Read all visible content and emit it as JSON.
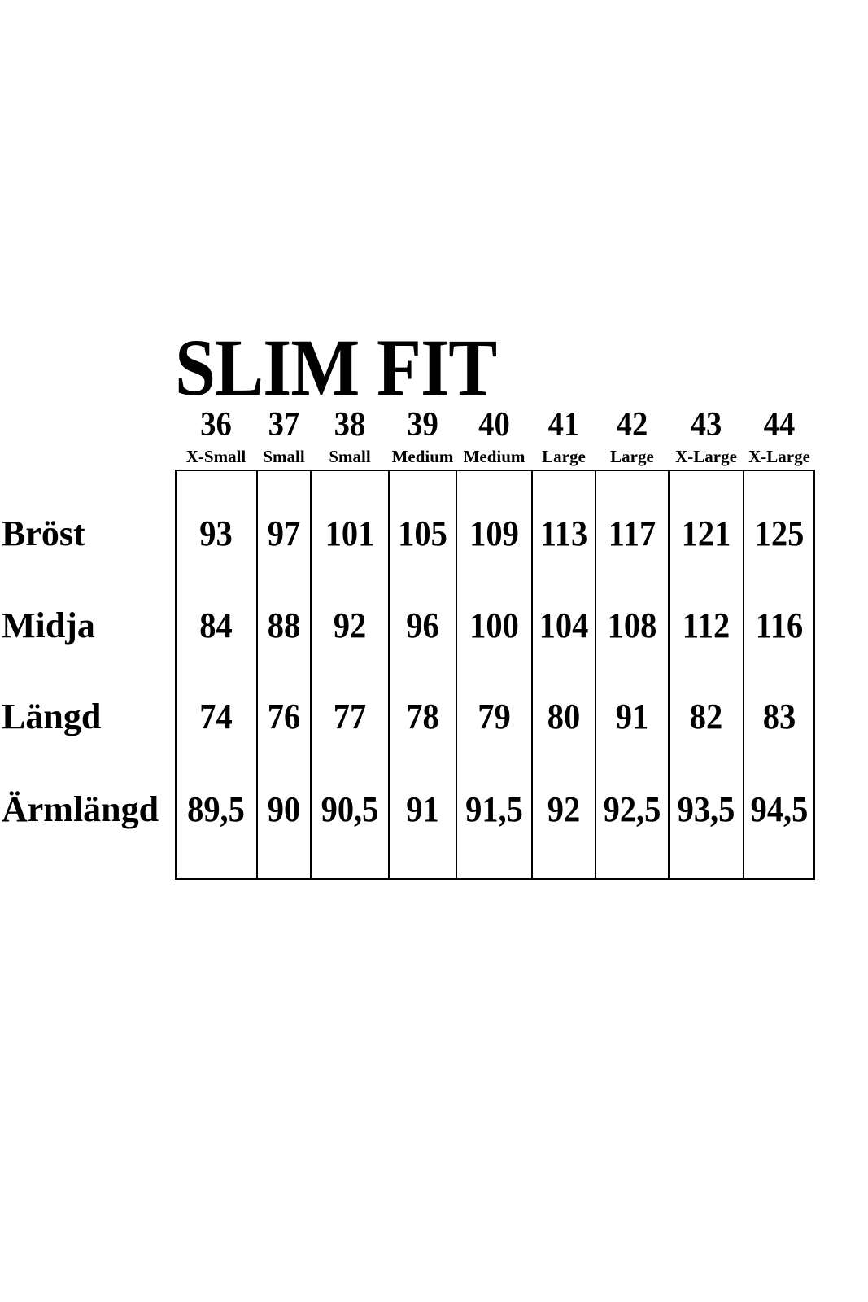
{
  "title": "SLIM FIT",
  "sizes": [
    {
      "number": "36",
      "label": "X-Small"
    },
    {
      "number": "37",
      "label": "Small"
    },
    {
      "number": "38",
      "label": "Small"
    },
    {
      "number": "39",
      "label": "Medium"
    },
    {
      "number": "40",
      "label": "Medium"
    },
    {
      "number": "41",
      "label": "Large"
    },
    {
      "number": "42",
      "label": "Large"
    },
    {
      "number": "43",
      "label": "X-Large"
    },
    {
      "number": "44",
      "label": "X-Large"
    }
  ],
  "rows": [
    {
      "label": "Bröst",
      "values": [
        "93",
        "97",
        "101",
        "105",
        "109",
        "113",
        "117",
        "121",
        "125"
      ]
    },
    {
      "label": "Midja",
      "values": [
        "84",
        "88",
        "92",
        "96",
        "100",
        "104",
        "108",
        "112",
        "116"
      ]
    },
    {
      "label": "Längd",
      "values": [
        "74",
        "76",
        "77",
        "78",
        "79",
        "80",
        "91",
        "82",
        "83"
      ]
    },
    {
      "label": "Ärmlängd",
      "values": [
        "89,5",
        "90",
        "90,5",
        "91",
        "91,5",
        "92",
        "92,5",
        "93,5",
        "94,5"
      ]
    }
  ]
}
